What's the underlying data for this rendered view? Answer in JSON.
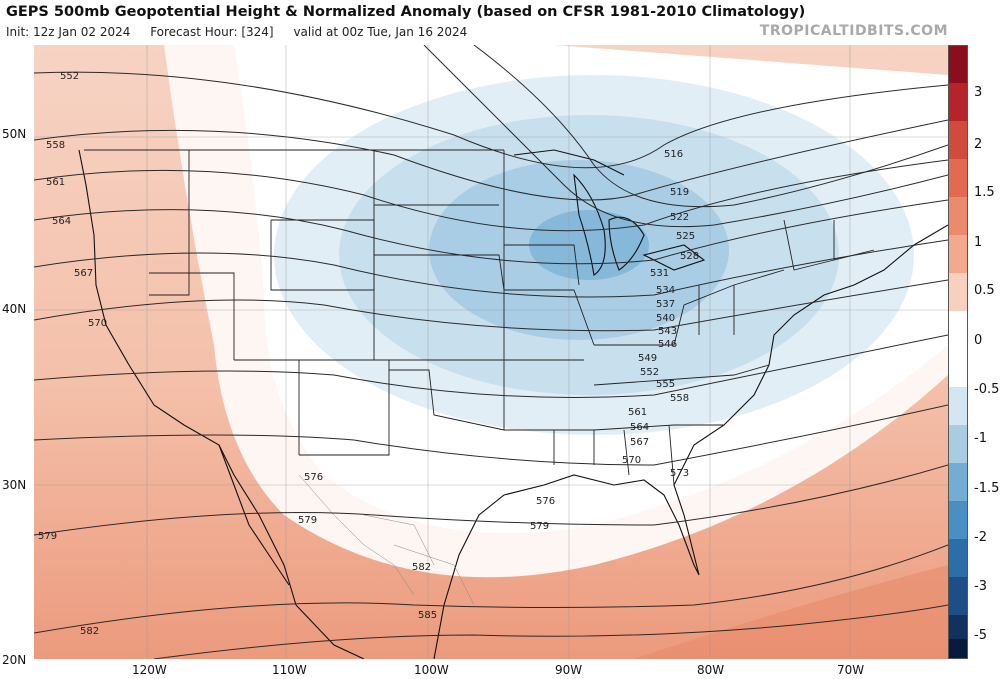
{
  "header": {
    "title": "GEPS 500mb Geopotential Height & Normalized Anomaly (based on CFSR 1981-2010 Climatology)",
    "init": "Init: 12z Jan 02 2024",
    "forecast_hour": "Forecast Hour: [324]",
    "valid": "valid at 00z Tue, Jan 16 2024",
    "brand": "TROPICALTIDBITS.COM"
  },
  "map": {
    "lat_labels": [
      "50N",
      "40N",
      "30N",
      "20N"
    ],
    "lon_labels": [
      "120W",
      "110W",
      "100W",
      "90W",
      "80W",
      "70W"
    ],
    "contour_labels": [
      "552",
      "558",
      "561",
      "564",
      "567",
      "570",
      "576",
      "579",
      "579",
      "582",
      "585",
      "582",
      "576",
      "579",
      "573",
      "570",
      "567",
      "564",
      "561",
      "558",
      "555",
      "552",
      "549",
      "546",
      "543",
      "540",
      "537",
      "534",
      "531",
      "528",
      "525",
      "522",
      "519",
      "516"
    ]
  },
  "colorbar": {
    "labels": [
      "3",
      "2",
      "1.5",
      "1",
      "0.5",
      "0",
      "-0.5",
      "-1",
      "-1.5",
      "-2",
      "-3",
      "-5"
    ],
    "colors": [
      "#8b0e1f",
      "#b5232b",
      "#d14a3e",
      "#e57a5e",
      "#f1a68a",
      "#f8d2c0",
      "#ffffff",
      "#ffffff",
      "#d3e6f1",
      "#a8cde3",
      "#74add3",
      "#4a8fc2",
      "#2c6ea7",
      "#1d4f86",
      "#13315f",
      "#0a1a3c"
    ]
  }
}
